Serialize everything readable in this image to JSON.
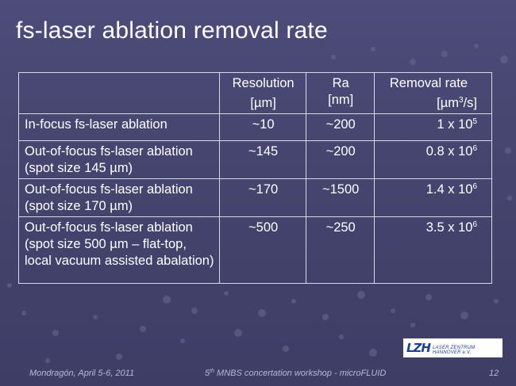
{
  "slide": {
    "title": "fs-laser ablation removal rate",
    "page_number": "12"
  },
  "table": {
    "headers": {
      "resolution": [
        "Resolution",
        "[µm]"
      ],
      "ra": [
        "Ra",
        "[nm]"
      ],
      "removal_rate_line1": "Removal rate",
      "removal_rate_unit_prefix": "[µm",
      "removal_rate_unit_sup": "3",
      "removal_rate_unit_suffix": "/s]"
    },
    "rows": [
      {
        "label": [
          "In-focus fs-laser ablation"
        ],
        "resolution": "~10",
        "ra": "~200",
        "rate_base": "1 x 10",
        "rate_exp": "5"
      },
      {
        "label": [
          "Out-of-focus fs-laser ablation",
          "(spot size 145 µm)"
        ],
        "resolution": "~145",
        "ra": "~200",
        "rate_base": "0.8 x 10",
        "rate_exp": "6"
      },
      {
        "label": [
          "Out-of-focus fs-laser ablation",
          "(spot size 170 µm)"
        ],
        "resolution": "~170",
        "ra": "~1500",
        "rate_base": "1.4 x 10",
        "rate_exp": "6"
      },
      {
        "label": [
          "Out-of-focus fs-laser ablation",
          "(spot size 500 µm – flat-top,",
          "local vacuum assisted abalation)"
        ],
        "resolution": "~500",
        "ra": "~250",
        "rate_base": "3.5 x 10",
        "rate_exp": "6"
      }
    ]
  },
  "footer": {
    "left": "Mondragón, April 5-6, 2011",
    "center_prefix": "5",
    "center_sup": "th",
    "center_suffix": " MNBS concertation workshop - microFLUID"
  },
  "logo": {
    "mark": "LZH",
    "text": "LASER ZENTRUM HANNOVER e.V."
  }
}
